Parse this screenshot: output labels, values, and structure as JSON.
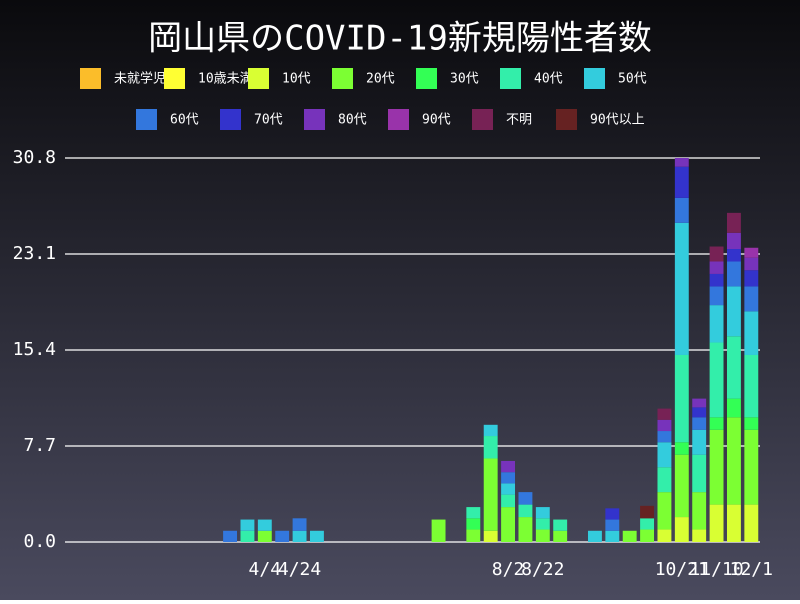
{
  "chart_data": {
    "type": "stacked_bar",
    "title": "岡山県のCOVID-19新規陽性者数",
    "categories": [
      null,
      null,
      null,
      null,
      null,
      null,
      null,
      null,
      null,
      null,
      null,
      "4/4",
      null,
      "4/24",
      null,
      null,
      null,
      null,
      null,
      null,
      null,
      null,
      null,
      null,
      null,
      "8/2",
      null,
      "8/22",
      null,
      null,
      null,
      null,
      null,
      null,
      null,
      "10/21",
      null,
      "11/10",
      null,
      "12/1"
    ],
    "ylim": [
      0,
      30.8
    ],
    "yticks": [
      {
        "value": 0,
        "label": "0.0"
      },
      7.7,
      15.4,
      23.1,
      30.8
    ],
    "grid": true,
    "series": [
      {
        "name": "未就学児",
        "color": "#fbbd2a",
        "values": [
          0,
          0,
          0,
          0,
          0,
          0,
          0,
          0,
          0,
          0,
          0,
          0,
          0,
          0,
          0,
          0,
          0,
          0,
          0,
          0,
          0,
          0,
          0,
          0,
          0,
          0,
          0,
          0,
          0,
          0,
          0,
          0,
          0,
          0,
          0,
          0,
          0,
          0,
          0,
          0
        ]
      },
      {
        "name": "10歳未満",
        "color": "#ffff33",
        "values": [
          0,
          0,
          0,
          0,
          0,
          0,
          0,
          0,
          0,
          0,
          0,
          0,
          0,
          0,
          0,
          0,
          0,
          0,
          0,
          0,
          0,
          0,
          0,
          0,
          0,
          0,
          0,
          0,
          0,
          0,
          0,
          0,
          0,
          0,
          0,
          0,
          0,
          0,
          0,
          0
        ]
      },
      {
        "name": "10代",
        "color": "#d9ff33",
        "values": [
          0,
          0,
          0,
          0,
          0,
          0,
          0,
          0,
          0,
          0,
          0,
          0,
          0,
          0,
          0,
          0,
          0,
          0,
          0,
          0,
          0,
          0,
          0,
          0,
          0.9,
          0,
          0,
          0,
          0,
          0,
          0,
          0,
          0,
          0,
          1,
          2,
          1,
          3,
          3,
          3
        ]
      },
      {
        "name": "20代",
        "color": "#7cff33",
        "values": [
          0,
          0,
          0,
          0,
          0,
          0,
          0,
          0,
          0,
          0,
          0,
          0.9,
          0,
          0,
          0,
          0,
          0,
          0,
          0,
          0,
          0,
          1.8,
          0,
          1,
          5.8,
          2.8,
          2,
          1,
          0.9,
          0,
          0,
          0,
          0.9,
          1,
          3,
          5,
          3,
          6,
          7,
          6
        ]
      },
      {
        "name": "30代",
        "color": "#33ff55",
        "values": [
          0,
          0,
          0,
          0,
          0,
          0,
          0,
          0,
          0,
          0,
          0,
          0,
          0,
          0,
          0,
          0,
          0,
          0,
          0,
          0,
          0,
          0,
          0,
          0.9,
          0,
          0,
          0,
          0,
          0,
          0,
          0,
          0,
          0,
          0,
          0,
          1,
          0,
          1,
          1.5,
          1
        ]
      },
      {
        "name": "40代",
        "color": "#33eeaa",
        "values": [
          0,
          0,
          0,
          0,
          0,
          0,
          0,
          0,
          0,
          0,
          0.9,
          0,
          0,
          0,
          0,
          0,
          0,
          0,
          0,
          0,
          0,
          0,
          0,
          0.9,
          1.8,
          1,
          1,
          0.9,
          0.9,
          0,
          0,
          0,
          0,
          0.9,
          2,
          7,
          3,
          6,
          5,
          5
        ]
      },
      {
        "name": "50代",
        "color": "#33ccdd",
        "values": [
          0,
          0,
          0,
          0,
          0,
          0,
          0,
          0,
          0,
          0,
          0.9,
          0.9,
          0,
          0.9,
          0.9,
          0,
          0,
          0,
          0,
          0,
          0,
          0,
          0,
          0,
          0.9,
          0.9,
          0,
          0.9,
          0,
          0,
          0.9,
          0.9,
          0,
          0,
          2,
          10.6,
          2,
          3,
          4,
          3.5
        ]
      },
      {
        "name": "60代",
        "color": "#3377dd",
        "values": [
          0,
          0,
          0,
          0,
          0,
          0,
          0,
          0,
          0,
          0.9,
          0,
          0,
          0.9,
          1,
          0,
          0,
          0,
          0,
          0,
          0,
          0,
          0,
          0,
          0,
          0,
          0.9,
          1,
          0,
          0,
          0,
          0,
          0.9,
          0,
          0,
          0.9,
          2,
          1,
          1.5,
          2,
          2
        ]
      },
      {
        "name": "70代",
        "color": "#3333cc",
        "values": [
          0,
          0,
          0,
          0,
          0,
          0,
          0,
          0,
          0,
          0,
          0,
          0,
          0,
          0,
          0,
          0,
          0,
          0,
          0,
          0,
          0,
          0,
          0,
          0,
          0,
          0,
          0,
          0,
          0,
          0,
          0,
          0.9,
          0,
          0,
          0,
          2.5,
          0.8,
          1,
          1,
          1.3
        ]
      },
      {
        "name": "80代",
        "color": "#7733bb",
        "values": [
          0,
          0,
          0,
          0,
          0,
          0,
          0,
          0,
          0,
          0,
          0,
          0,
          0,
          0,
          0,
          0,
          0,
          0,
          0,
          0,
          0,
          0,
          0,
          0,
          0,
          0.9,
          0,
          0,
          0,
          0,
          0,
          0,
          0,
          0,
          0.9,
          0.7,
          0.7,
          1,
          1.3,
          1
        ]
      },
      {
        "name": "90代",
        "color": "#9933aa",
        "values": [
          0,
          0,
          0,
          0,
          0,
          0,
          0,
          0,
          0,
          0,
          0,
          0,
          0,
          0,
          0,
          0,
          0,
          0,
          0,
          0,
          0,
          0,
          0,
          0,
          0,
          0,
          0,
          0,
          0,
          0,
          0,
          0,
          0,
          0,
          0,
          0,
          0,
          0,
          0,
          0.8
        ]
      },
      {
        "name": "不明",
        "color": "#772255",
        "values": [
          0,
          0,
          0,
          0,
          0,
          0,
          0,
          0,
          0,
          0,
          0,
          0,
          0,
          0,
          0,
          0,
          0,
          0,
          0,
          0,
          0,
          0,
          0,
          0,
          0,
          0,
          0,
          0,
          0,
          0,
          0,
          0,
          0,
          0,
          0.9,
          0,
          0,
          1.2,
          1.6,
          0
        ]
      },
      {
        "name": "90代以上",
        "color": "#662222",
        "values": [
          0,
          0,
          0,
          0,
          0,
          0,
          0,
          0,
          0,
          0,
          0,
          0,
          0,
          0,
          0,
          0,
          0,
          0,
          0,
          0,
          0,
          0,
          0,
          0,
          0,
          0,
          0,
          0,
          0,
          0,
          0,
          0,
          0,
          1,
          0,
          0,
          0,
          0,
          0,
          0
        ]
      }
    ]
  }
}
